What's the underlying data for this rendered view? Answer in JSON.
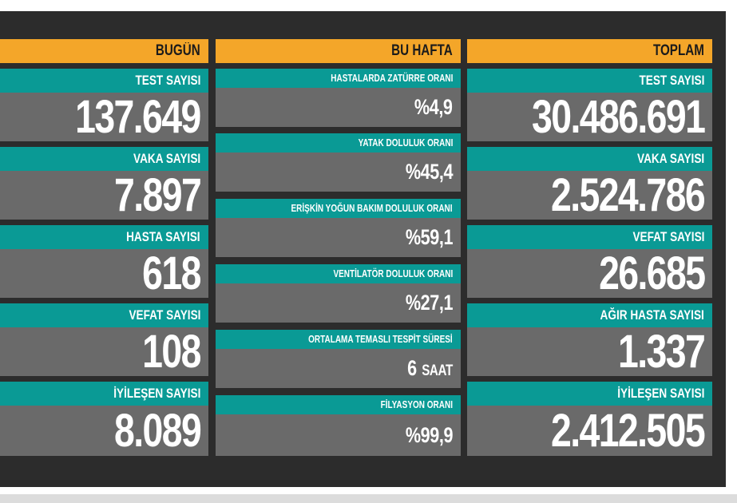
{
  "headers": {
    "today": "BUGÜN",
    "week": "BU HAFTA",
    "total": "TOPLAM"
  },
  "today": [
    {
      "label": "TEST SAYISI",
      "value": "137.649"
    },
    {
      "label": "VAKA SAYISI",
      "value": "7.897"
    },
    {
      "label": "HASTA SAYISI",
      "value": "618"
    },
    {
      "label": "VEFAT SAYISI",
      "value": "108"
    },
    {
      "label": "İYİLEŞEN SAYISI",
      "value": "8.089"
    }
  ],
  "week": [
    {
      "label": "HASTALARDA ZATÜRRE ORANI",
      "value": "%4,9"
    },
    {
      "label": "YATAK DOLULUK ORANI",
      "value": "%45,4"
    },
    {
      "label": "ERİŞKİN YOĞUN BAKIM DOLULUK ORANI",
      "value": "%59,1"
    },
    {
      "label": "VENTİLATÖR DOLULUK ORANI",
      "value": "%27,1"
    },
    {
      "label": "ORTALAMA TEMASLI TESPİT SÜRESİ",
      "value": "6",
      "unit": "SAAT"
    },
    {
      "label": "FİLYASYON ORANI",
      "value": "%99,9"
    }
  ],
  "total": [
    {
      "label": "TEST SAYISI",
      "value": "30.486.691"
    },
    {
      "label": "VAKA SAYISI",
      "value": "2.524.786"
    },
    {
      "label": "VEFAT SAYISI",
      "value": "26.685"
    },
    {
      "label": "AĞIR HASTA SAYISI",
      "value": "1.337"
    },
    {
      "label": "İYİLEŞEN SAYISI",
      "value": "2.412.505"
    }
  ],
  "colors": {
    "header_bg": "#f4a629",
    "label_bg": "#0a9a95",
    "value_bg": "#6a6a6a",
    "board_bg": "#2c2c2c"
  }
}
